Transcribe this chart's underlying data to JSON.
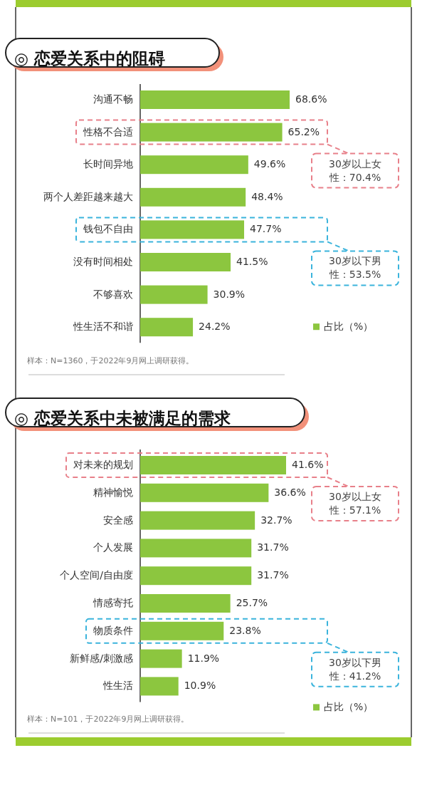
{
  "chart_data": [
    {
      "type": "bar",
      "orientation": "horizontal",
      "title": "◎ 恋爱关系中的阻碍",
      "categories": [
        "沟通不畅",
        "性格不合适",
        "长时间异地",
        "两个人差距越来越大",
        "钱包不自由",
        "没有时间相处",
        "不够喜欢",
        "性生活不和谐"
      ],
      "series": [
        {
          "name": "占比（%）",
          "color": "#8cc63f",
          "values": [
            68.6,
            65.2,
            49.6,
            48.4,
            47.7,
            41.5,
            30.9,
            24.2
          ],
          "value_labels": [
            "68.6%",
            "65.2%",
            "49.6%",
            "48.4%",
            "47.7%",
            "41.5%",
            "30.9%",
            "24.2%"
          ]
        }
      ],
      "legend": "bottom right",
      "annotations": [
        "30岁以上女性：70.4%",
        "30岁以下男性：53.5%",
        "样本：N=1360，于2022年9月网上调研获得。"
      ]
    },
    {
      "type": "bar",
      "orientation": "horizontal",
      "title": "◎ 恋爱关系中未被满足的需求",
      "categories": [
        "对未来的规划",
        "精神愉悦",
        "安全感",
        "个人发展",
        "个人空间/自由度",
        "情感寄托",
        "物质条件",
        "新鲜感/刺激感",
        "性生活"
      ],
      "series": [
        {
          "name": "占比（%）",
          "color": "#8cc63f",
          "values": [
            41.6,
            36.6,
            32.7,
            31.7,
            31.7,
            25.7,
            23.8,
            11.9,
            10.9
          ],
          "value_labels": [
            "41.6%",
            "36.6%",
            "32.7%",
            "31.7%",
            "31.7%",
            "25.7%",
            "23.8%",
            "11.9%",
            "10.9%"
          ]
        }
      ],
      "legend": "bottom right",
      "annotations": [
        "30岁以上女性：57.1%",
        "30岁以下男性：41.2%",
        "样本：N=101，于2022年9月网上调研获得。"
      ]
    }
  ]
}
